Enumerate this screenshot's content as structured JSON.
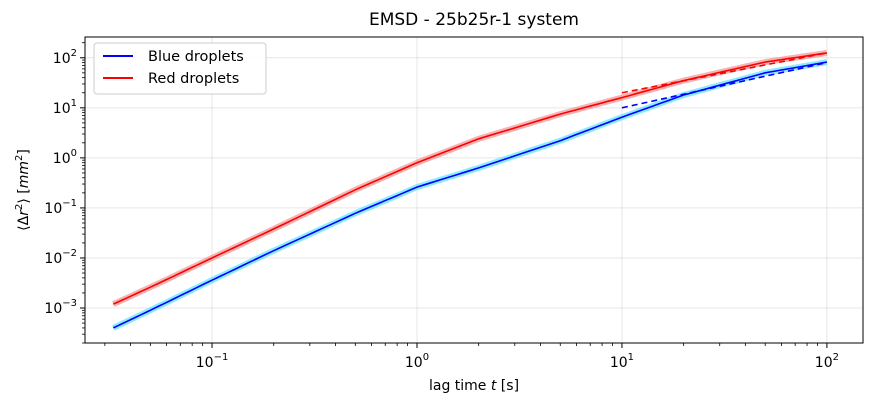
{
  "chart_data": {
    "type": "line",
    "title": "EMSD - 25b25r-1 system",
    "xlabel_prefix": "lag time ",
    "xlabel_var": "t",
    "xlabel_suffix": " [s]",
    "ylabel_open": "⟨Δ",
    "ylabel_r": "r",
    "ylabel_exp": "2",
    "ylabel_close": "⟩ [",
    "ylabel_unit": "mm",
    "ylabel_unit_exp": "2",
    "ylabel_end": "]",
    "x_scale": "log",
    "y_scale": "log",
    "xlim": [
      0.024,
      150
    ],
    "ylim": [
      0.0002,
      260
    ],
    "x_ticks": [
      {
        "value": 0.1,
        "base": "10",
        "exp": "−1"
      },
      {
        "value": 1,
        "base": "10",
        "exp": "0"
      },
      {
        "value": 10,
        "base": "10",
        "exp": "1"
      },
      {
        "value": 100,
        "base": "10",
        "exp": "2"
      }
    ],
    "y_ticks": [
      {
        "value": 0.001,
        "base": "10",
        "exp": "−3"
      },
      {
        "value": 0.01,
        "base": "10",
        "exp": "−2"
      },
      {
        "value": 0.1,
        "base": "10",
        "exp": "−1"
      },
      {
        "value": 1,
        "base": "10",
        "exp": "0"
      },
      {
        "value": 10,
        "base": "10",
        "exp": "1"
      },
      {
        "value": 100,
        "base": "10",
        "exp": "2"
      }
    ],
    "grid": true,
    "legend_position": "top-left",
    "series": [
      {
        "name": "Blue droplets",
        "color": "#0000ff",
        "band_color": "#40e0ff",
        "x": [
          0.033,
          0.05,
          0.1,
          0.2,
          0.5,
          1,
          2,
          5,
          10,
          20,
          50,
          100
        ],
        "y": [
          0.0004,
          0.0009,
          0.0036,
          0.014,
          0.078,
          0.26,
          0.63,
          2.2,
          6.5,
          18,
          50,
          82
        ]
      },
      {
        "name": "Red droplets",
        "color": "#ff0000",
        "band_color": "#f08080",
        "x": [
          0.033,
          0.05,
          0.1,
          0.2,
          0.5,
          1,
          2,
          5,
          10,
          20,
          50,
          100
        ],
        "y": [
          0.0012,
          0.0026,
          0.01,
          0.038,
          0.23,
          0.8,
          2.4,
          7.5,
          16,
          35,
          82,
          125
        ]
      }
    ],
    "fits": [
      {
        "color": "#0000ff",
        "x": [
          10,
          100
        ],
        "y": [
          10,
          80
        ]
      },
      {
        "color": "#ff0000",
        "x": [
          10,
          100
        ],
        "y": [
          20,
          125
        ]
      }
    ]
  }
}
